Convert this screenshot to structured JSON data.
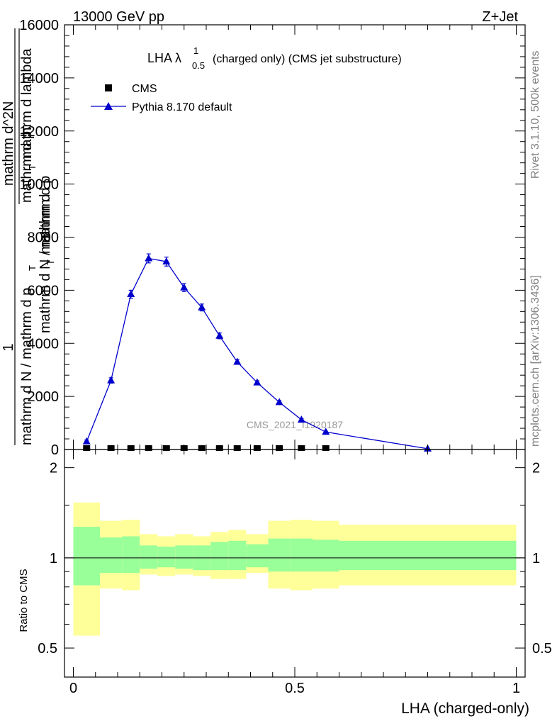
{
  "header": {
    "left": "13000 GeV pp",
    "right": "Z+Jet"
  },
  "side_texts": {
    "rivet": "Rivet 3.1.10,  500k events",
    "mcplots": "mcplots.cern.ch [arXiv:1306.3436]"
  },
  "watermark": "CMS_2021_I1920187",
  "colors": {
    "mc_line": "#0000cc",
    "data_marker": "#000000",
    "band_inner": "#99ff99",
    "band_outer": "#ffff99",
    "side_text": "#808080"
  },
  "chart_data": [
    {
      "type": "line",
      "title_main": "LHA λ",
      "title_sup": "1",
      "title_sub": "0.5",
      "title_rest": "(charged only) (CMS jet substructure)",
      "xlim": [
        -0.02,
        1.02
      ],
      "ylim": [
        0,
        16000
      ],
      "yticks": [
        0,
        2000,
        4000,
        6000,
        8000,
        10000,
        12000,
        14000,
        16000
      ],
      "ylabel_lines": [
        "mathrm d N",
        "mathrm d p",
        "mathrm d N",
        "mathrm d p",
        "mathrm d lambda"
      ],
      "ylabel_overlay": {
        "one": "1",
        "num1": "mathrm d N / mathrm d p",
        "sub1": "T",
        "den1": "mathrm d N",
        "num2": "mathrm d^2N",
        "den2a": "mathrm d p",
        "sub2": "T",
        "den2b": "mathrm d lambda",
        "frac2_top": "mathrm d",
        "frac2_sup": "2",
        "frac2_n": "N",
        "frac2_den": "mathrm d p  mathrm d lambda"
      },
      "legend": [
        {
          "label": "CMS",
          "marker": "square"
        },
        {
          "label": "Pythia 8.170 default",
          "marker": "triangle"
        }
      ],
      "legend_placement": "top-left",
      "series": [
        {
          "name": "CMS",
          "x": [
            0.03,
            0.085,
            0.13,
            0.17,
            0.21,
            0.25,
            0.29,
            0.33,
            0.37,
            0.415,
            0.465,
            0.515,
            0.57
          ],
          "y": [
            0,
            0,
            0,
            0,
            0,
            0,
            0,
            0,
            0,
            0,
            0,
            0,
            0
          ]
        },
        {
          "name": "Pythia 8.170 default",
          "x": [
            0.03,
            0.085,
            0.13,
            0.17,
            0.21,
            0.25,
            0.29,
            0.33,
            0.37,
            0.415,
            0.465,
            0.515,
            0.57,
            0.8
          ],
          "y": [
            300,
            2600,
            5850,
            7200,
            7080,
            6100,
            5350,
            4280,
            3300,
            2520,
            1780,
            1120,
            660,
            30
          ],
          "yerr": [
            60,
            100,
            150,
            170,
            170,
            150,
            130,
            110,
            90,
            70,
            60,
            40,
            30,
            10
          ]
        }
      ]
    },
    {
      "type": "area",
      "ylabel": "Ratio to CMS",
      "xlabel": "LHA (charged-only)",
      "xlim": [
        -0.02,
        1.02
      ],
      "ylim": [
        0.4,
        2.3
      ],
      "log_y": true,
      "yticks": [
        0.5,
        1,
        2
      ],
      "yticklabels": [
        "0.5",
        "1",
        "2"
      ],
      "xticks": [
        0,
        0.5,
        1
      ],
      "xticklabels": [
        "0",
        "0.5",
        "1"
      ],
      "bins": {
        "edges": [
          0.0,
          0.06,
          0.11,
          0.15,
          0.19,
          0.23,
          0.27,
          0.31,
          0.35,
          0.39,
          0.44,
          0.49,
          0.54,
          0.6,
          1.0
        ],
        "inner_lo": [
          0.81,
          0.89,
          0.89,
          0.92,
          0.93,
          0.92,
          0.91,
          0.91,
          0.91,
          0.93,
          0.9,
          0.9,
          0.9,
          0.91
        ],
        "inner_hi": [
          1.27,
          1.17,
          1.18,
          1.1,
          1.09,
          1.1,
          1.1,
          1.13,
          1.14,
          1.11,
          1.16,
          1.16,
          1.15,
          1.14
        ],
        "outer_lo": [
          0.55,
          0.79,
          0.78,
          0.88,
          0.87,
          0.88,
          0.87,
          0.85,
          0.85,
          0.89,
          0.79,
          0.78,
          0.79,
          0.81
        ],
        "outer_hi": [
          1.53,
          1.33,
          1.34,
          1.2,
          1.18,
          1.2,
          1.18,
          1.22,
          1.24,
          1.2,
          1.33,
          1.34,
          1.33,
          1.29
        ]
      },
      "reference": 1
    }
  ]
}
